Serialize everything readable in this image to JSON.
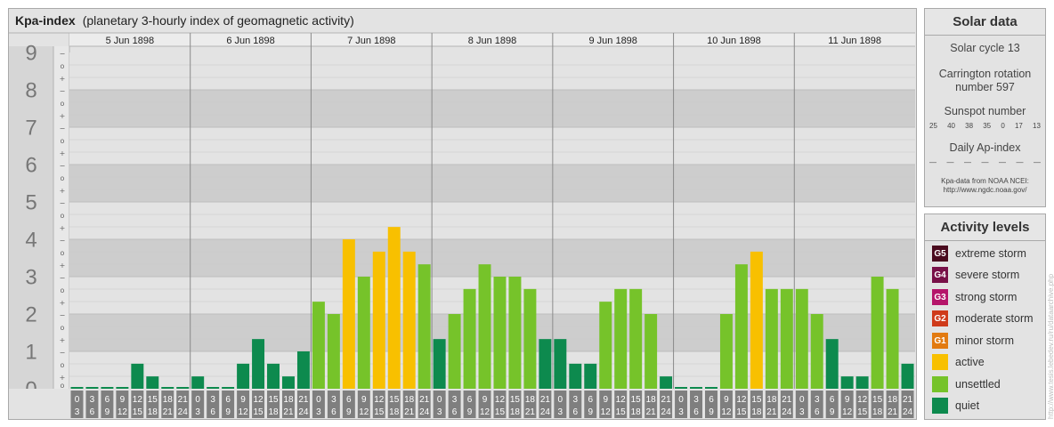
{
  "header": {
    "title": "Kpa-index",
    "subtitle": "(planetary 3-hourly index of geomagnetic activity)"
  },
  "chart_data": {
    "type": "bar",
    "ylim": [
      0,
      9
    ],
    "y_ticks": [
      "0",
      "1",
      "2",
      "3",
      "4",
      "5",
      "6",
      "7",
      "8",
      "9"
    ],
    "sub_ticks": [
      "+",
      "o",
      "−"
    ],
    "days": [
      "5 Jun 1898",
      "6 Jun 1898",
      "7 Jun 1898",
      "8 Jun 1898",
      "9 Jun 1898",
      "10 Jun 1898",
      "11 Jun 1898"
    ],
    "interval_start": [
      "0",
      "3",
      "6",
      "9",
      "12",
      "15",
      "18",
      "21"
    ],
    "interval_end": [
      "3",
      "6",
      "9",
      "12",
      "15",
      "18",
      "21",
      "24"
    ],
    "values": [
      [
        0,
        0,
        0,
        0,
        0.67,
        0.33,
        0,
        0
      ],
      [
        0.33,
        0,
        0,
        0.67,
        1.33,
        0.67,
        0.33,
        1
      ],
      [
        2.33,
        2,
        4,
        3,
        3.67,
        4.33,
        3.67,
        3.33
      ],
      [
        1.33,
        2,
        2.67,
        3.33,
        3,
        3,
        2.67,
        1.33
      ],
      [
        1.33,
        0.67,
        0.67,
        2.33,
        2.67,
        2.67,
        2,
        0.33
      ],
      [
        0,
        0,
        0,
        2,
        3.33,
        3.67,
        2.67,
        2.67
      ],
      [
        2.67,
        2,
        1.33,
        0.33,
        0.33,
        3,
        2.67,
        0.67
      ]
    ],
    "grid": true
  },
  "solar": {
    "title": "Solar data",
    "cycle": "Solar cycle 13",
    "carrington_line1": "Carrington rotation",
    "carrington_line2": "number 597",
    "sunspot_label": "Sunspot number",
    "sunspot_values": [
      "25",
      "40",
      "38",
      "35",
      "0",
      "17",
      "13"
    ],
    "ap_label": "Daily Ap-index",
    "ap_values": [
      "—",
      "—",
      "—",
      "—",
      "—",
      "—",
      "—"
    ],
    "credit_line1": "Kpa-data from NOAA NCEI:",
    "credit_line2": "http://www.ngdc.noaa.gov/"
  },
  "activity": {
    "title": "Activity levels",
    "levels": [
      {
        "badge": "G5",
        "label": "extreme storm",
        "color": "#4a0a1e"
      },
      {
        "badge": "G4",
        "label": "severe storm",
        "color": "#781048"
      },
      {
        "badge": "G3",
        "label": "strong storm",
        "color": "#b5156a"
      },
      {
        "badge": "G2",
        "label": "moderate storm",
        "color": "#cf3a1a"
      },
      {
        "badge": "G1",
        "label": "minor storm",
        "color": "#e27a10"
      },
      {
        "badge": "",
        "label": "active",
        "color": "#f8c000"
      },
      {
        "badge": "",
        "label": "unsettled",
        "color": "#76c32a"
      },
      {
        "badge": "",
        "label": "quiet",
        "color": "#0d8a4e"
      }
    ]
  },
  "watermark": "http://www.tesis.lebedev.ru/ru/dataarchive.php"
}
